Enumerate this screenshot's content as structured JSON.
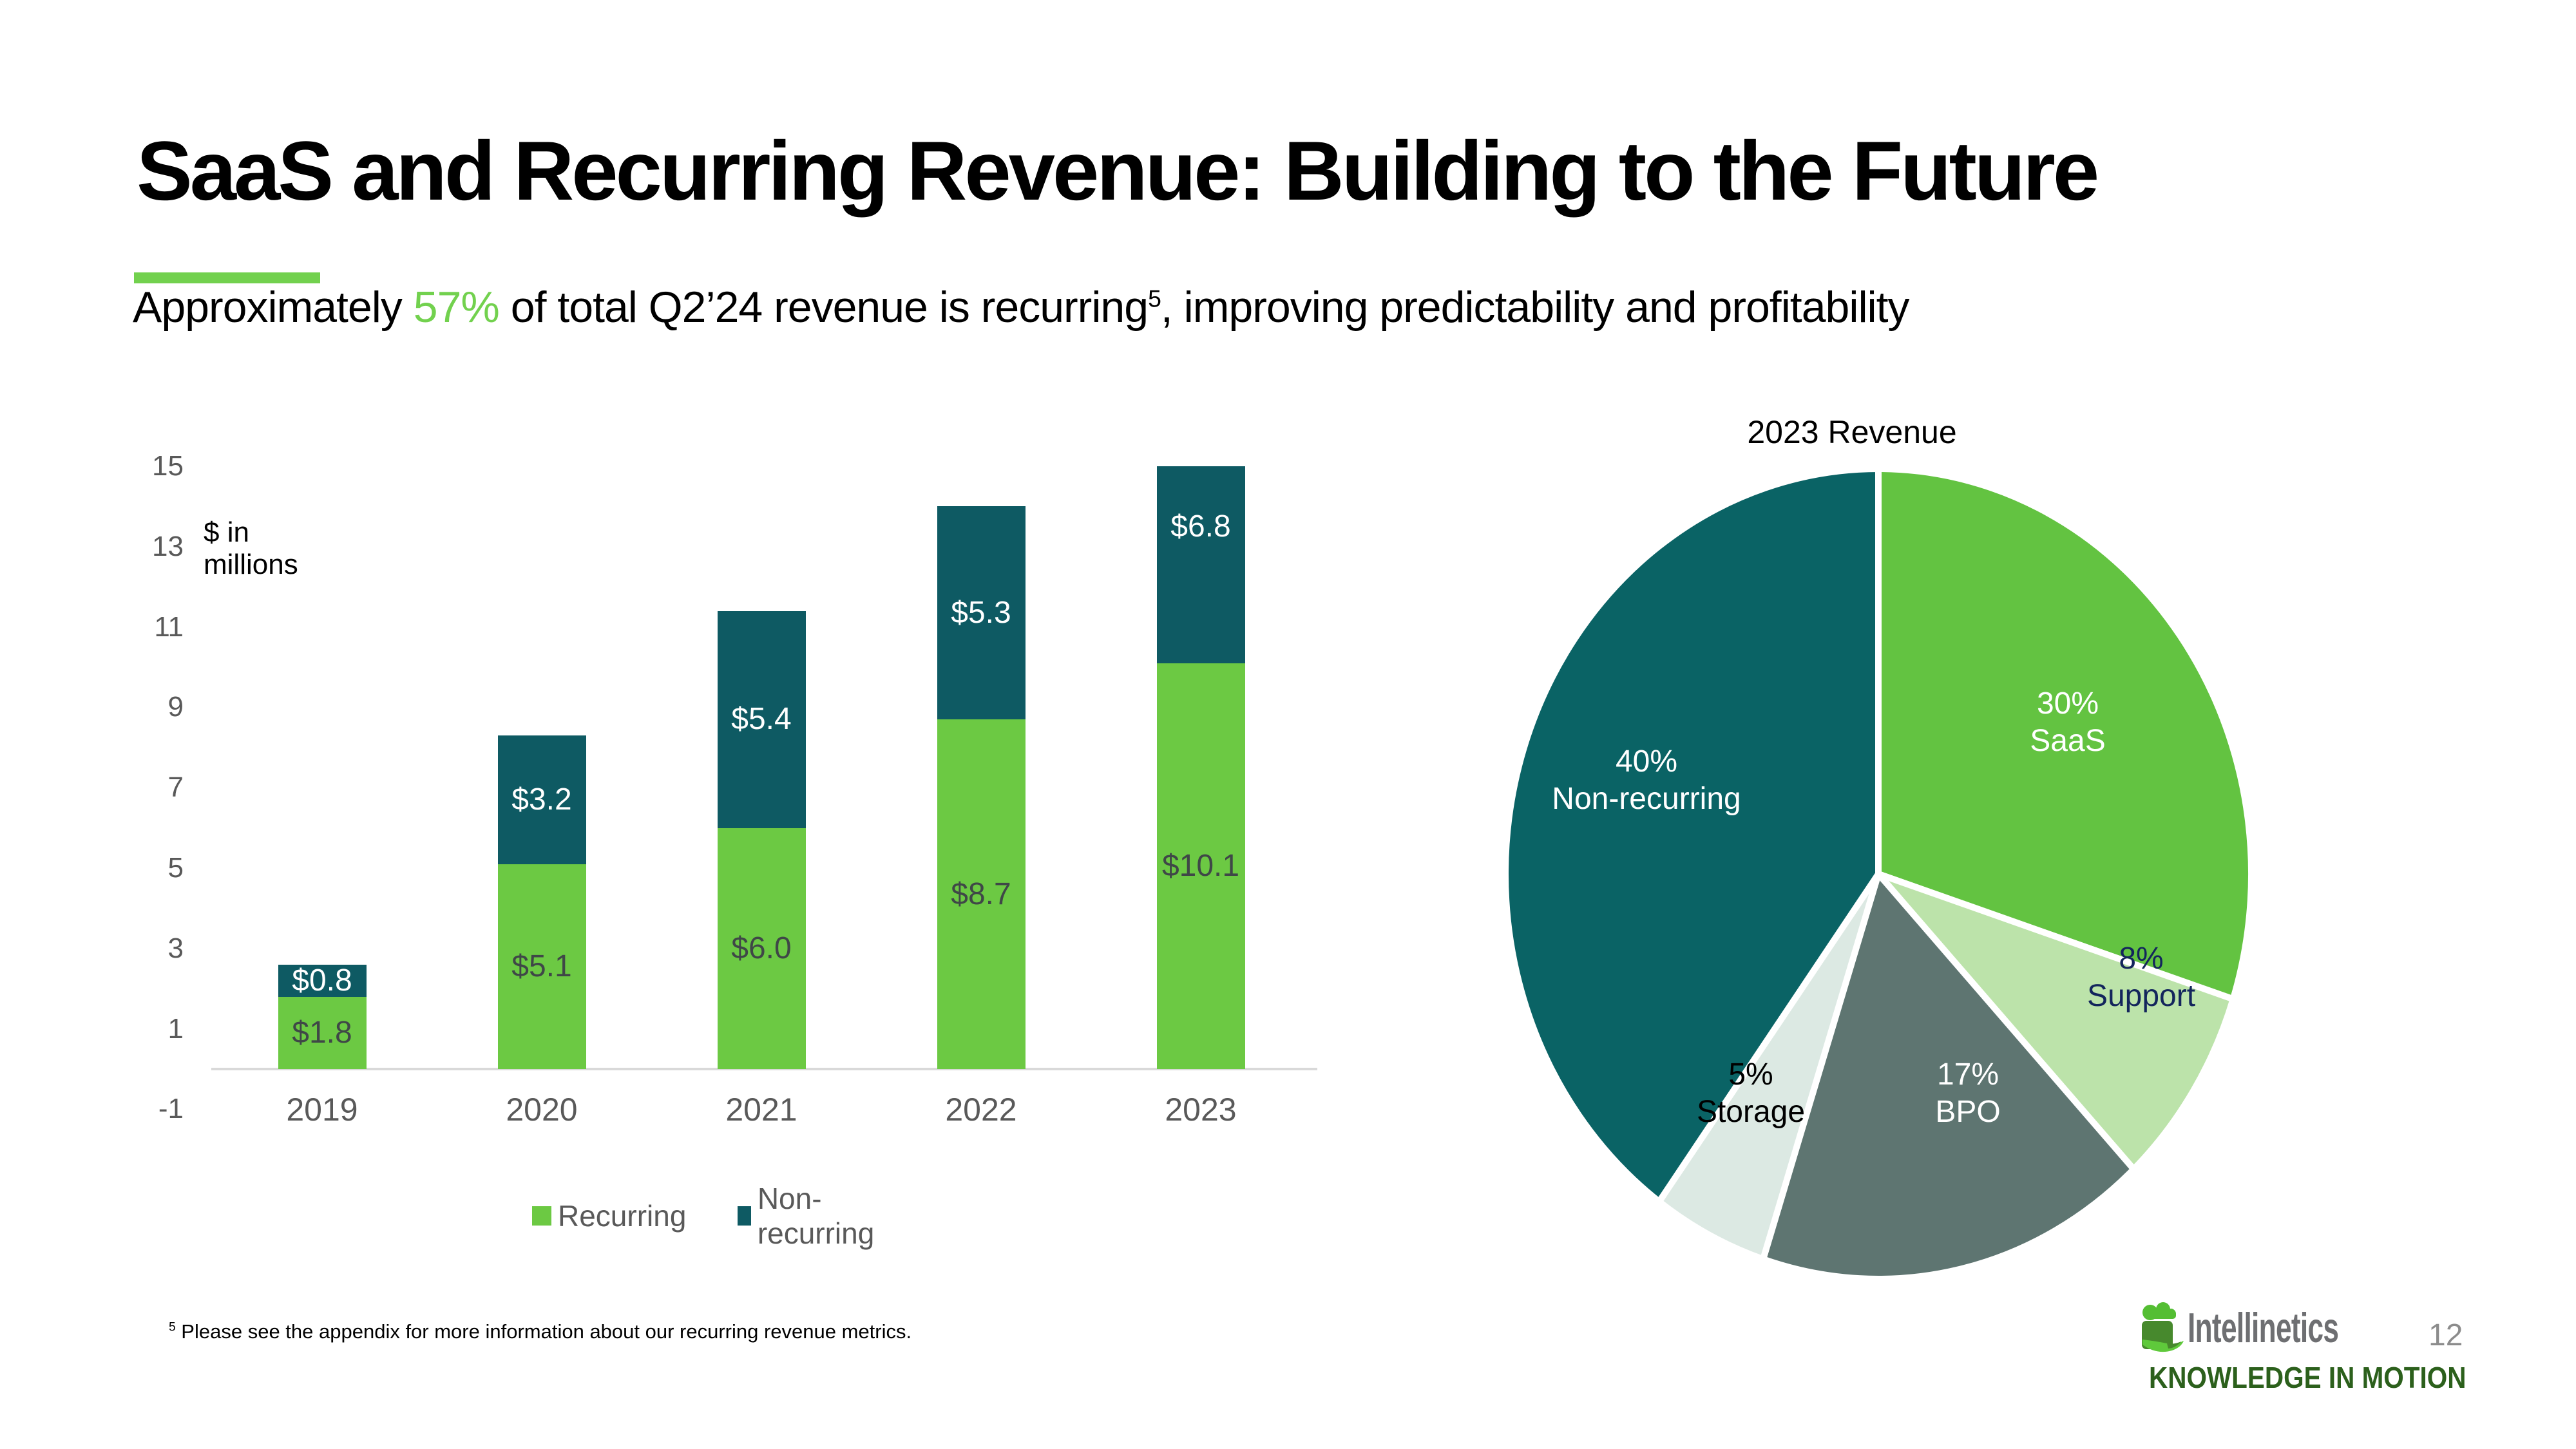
{
  "slide": {
    "title": "SaaS and Recurring Revenue: Building to the Future",
    "subtitle": {
      "prefix": "Approximately ",
      "highlight": "57%",
      "middle": " of total Q2’24 revenue is recurring",
      "superscript": "5",
      "suffix": ", improving predictability and profitability"
    },
    "footnote": {
      "superscript": "5",
      "text": " Please see the appendix for more information about our recurring revenue metrics."
    },
    "page_number": "12",
    "logo": {
      "name": "Intellinetics",
      "tagline": "KNOWLEDGE IN MOTION",
      "icon": "cloud-scroll-icon"
    }
  },
  "palette": {
    "accent_green": "#72D14E",
    "bar_green": "#6CC943",
    "bar_teal": "#0E5A63",
    "axis_gray": "#595959",
    "axis_line": "#D9D9D9",
    "bar_label_dark": "#3F4747",
    "navy_label": "#13255C",
    "logo_gray": "#6E6F72",
    "logo_dark_green": "#2C601C",
    "logo_icon_light": "#54BE33",
    "logo_icon_dark": "#47892D",
    "logo_icon_curl": "#5FC93B"
  },
  "chart_data": [
    {
      "type": "bar",
      "stacked": true,
      "units_label": "$ in millions",
      "categories": [
        "2019",
        "2020",
        "2021",
        "2022",
        "2023"
      ],
      "series": [
        {
          "name": "Recurring",
          "color": "#6CC943",
          "label_color": "#3F4747",
          "values": [
            1.8,
            5.1,
            6.0,
            8.7,
            10.1
          ],
          "labels": [
            "$1.8",
            "$5.1",
            "$6.0",
            "$8.7",
            "$10.1"
          ]
        },
        {
          "name": "Non-recurring",
          "color": "#0E5A63",
          "label_color": "#FFFFFF",
          "values": [
            0.8,
            3.2,
            5.4,
            5.3,
            6.8
          ],
          "labels": [
            "$0.8",
            "$3.2",
            "$5.4",
            "$5.3",
            "$6.8"
          ]
        }
      ],
      "y_ticks": [
        15,
        13,
        11,
        9,
        7,
        5,
        3,
        1,
        -1
      ],
      "ylim": [
        -1,
        15
      ],
      "gridlines": false,
      "legend_position": "bottom"
    },
    {
      "type": "pie",
      "title": "2023 Revenue",
      "start_angle_deg": 0,
      "direction": "clockwise",
      "slices": [
        {
          "label": "SaaS",
          "pct": 30,
          "color": "#63C341",
          "text_color": "#FFFFFF"
        },
        {
          "label": "Support",
          "pct": 8,
          "color": "#BCE3AA",
          "text_color": "#13255C"
        },
        {
          "label": "BPO",
          "pct": 17,
          "color": "#5E7571",
          "text_color": "#FFFFFF"
        },
        {
          "label": "Storage",
          "pct": 5,
          "color": "#DCE9E3",
          "text_color": "#000000"
        },
        {
          "label": "Non-recurring",
          "pct": 40,
          "color": "#0A6365",
          "text_color": "#FFFFFF"
        }
      ]
    }
  ]
}
